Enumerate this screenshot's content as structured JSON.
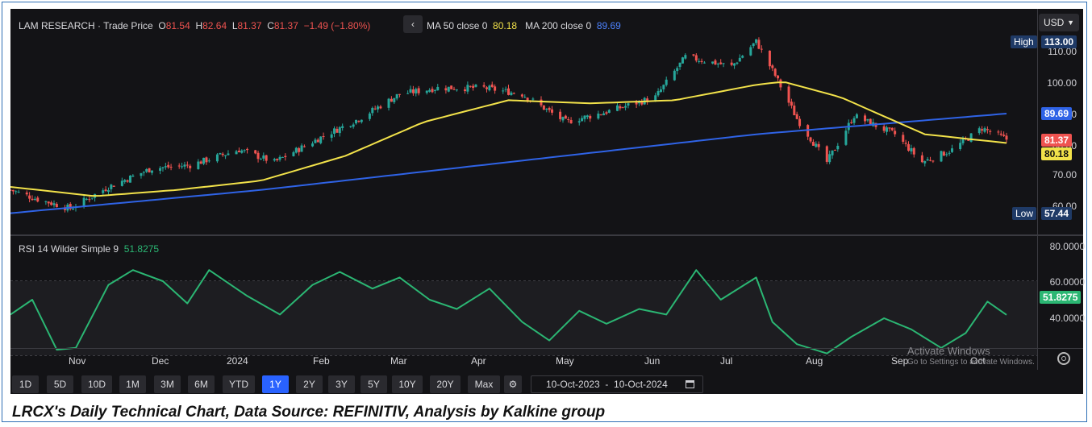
{
  "header": {
    "symbol": "LAM RESEARCH · Trade Price",
    "o_label": "O",
    "o_value": "81.54",
    "h_label": "H",
    "h_value": "82.64",
    "l_label": "L",
    "l_value": "81.37",
    "c_label": "C",
    "c_value": "81.37",
    "change": "−1.49 (−1.80%)",
    "collapse_icon": "chevron-left-icon",
    "ma50_label": "MA 50 close 0",
    "ma50_value": "80.18",
    "ma200_label": "MA 200 close 0",
    "ma200_value": "89.69",
    "currency": "USD"
  },
  "price_axis": {
    "ticks": [
      "110.00",
      "100.00",
      "90.00",
      "80.00",
      "70.00",
      "60.00"
    ],
    "high_label": "High",
    "high_value": "113.00",
    "low_label": "Low",
    "low_value": "57.44",
    "tag_ma200": "89.69",
    "tag_close": "81.37",
    "tag_ma50": "80.18"
  },
  "rsi": {
    "label": "RSI 14 Wilder Simple 9",
    "value": "51.8275",
    "ticks": [
      "80.0000",
      "60.0000",
      "40.0000"
    ],
    "tag": "51.8275"
  },
  "time_axis": {
    "labels": [
      "Nov",
      "Dec",
      "2024",
      "Feb",
      "Mar",
      "Apr",
      "May",
      "Jun",
      "Jul",
      "Aug",
      "Sep",
      "Oct"
    ]
  },
  "watermark": {
    "line1": "Activate Windows",
    "line2": "Go to Settings to activate Windows."
  },
  "toolbar": {
    "ranges": [
      "1D",
      "5D",
      "10D",
      "1M",
      "3M",
      "6M",
      "YTD",
      "1Y",
      "2Y",
      "3Y",
      "5Y",
      "10Y",
      "20Y",
      "Max"
    ],
    "active_range": "1Y",
    "settings_icon": "gear-icon",
    "date_from": "10-Oct-2023",
    "date_sep": "-",
    "date_to": "10-Oct-2024",
    "calendar_icon": "calendar-icon",
    "chart_settings_icon": "settings-icon"
  },
  "caption": "LRCX's Daily Technical Chart, Data Source: REFINITIV, Analysis by Kalkine group",
  "colors": {
    "background": "#131316",
    "up": "#26a69a",
    "down": "#ef5350",
    "ma50": "#f2e24a",
    "ma200": "#2f63e6",
    "rsi": "#2bb673",
    "active": "#2962ff"
  },
  "chart_data": [
    {
      "type": "candlestick",
      "title": "LAM RESEARCH · Trade Price",
      "x_range": [
        "10-Oct-2023",
        "10-Oct-2024"
      ],
      "ylim": [
        57.44,
        113.0
      ],
      "y_ticks": [
        60,
        70,
        80,
        90,
        100,
        110
      ],
      "series": [
        {
          "name": "Trade Price",
          "x": [
            "2023-10-10",
            "2023-10-20",
            "2023-11-01",
            "2023-11-15",
            "2023-12-01",
            "2023-12-15",
            "2024-01-02",
            "2024-01-15",
            "2024-02-01",
            "2024-02-15",
            "2024-03-01",
            "2024-03-15",
            "2024-04-01",
            "2024-04-15",
            "2024-05-01",
            "2024-05-15",
            "2024-06-03",
            "2024-06-14",
            "2024-07-01",
            "2024-07-10",
            "2024-07-17",
            "2024-07-25",
            "2024-08-05",
            "2024-08-15",
            "2024-08-30",
            "2024-09-09",
            "2024-09-20",
            "2024-10-01",
            "2024-10-10"
          ],
          "values": [
            65,
            62,
            59,
            66,
            72,
            73,
            78,
            74,
            82,
            88,
            96,
            98,
            98,
            96,
            87,
            90,
            95,
            108,
            105,
            113,
            102,
            88,
            74,
            89,
            83,
            74,
            78,
            85,
            81.37
          ]
        },
        {
          "name": "MA 50 close 0",
          "x": [
            "2023-10-10",
            "2023-11-10",
            "2023-12-10",
            "2024-01-10",
            "2024-02-10",
            "2024-03-10",
            "2024-04-10",
            "2024-05-10",
            "2024-06-10",
            "2024-07-10",
            "2024-07-20",
            "2024-08-10",
            "2024-09-10",
            "2024-10-10"
          ],
          "values": [
            66,
            63,
            65,
            68,
            76,
            87,
            94,
            93,
            94,
            99,
            100,
            95,
            83,
            80.18
          ]
        },
        {
          "name": "MA 200 close 0",
          "x": [
            "2023-10-10",
            "2024-01-10",
            "2024-04-10",
            "2024-07-10",
            "2024-10-10"
          ],
          "values": [
            57.5,
            65,
            74,
            83,
            89.69
          ]
        }
      ]
    },
    {
      "type": "line",
      "title": "RSI 14 Wilder Simple 9",
      "ylim": [
        26,
        88
      ],
      "y_ticks": [
        40,
        60,
        80
      ],
      "reference_lines": [
        30,
        70
      ],
      "series": [
        {
          "name": "RSI 14",
          "x": [
            "2023-10-10",
            "2023-10-18",
            "2023-10-27",
            "2023-11-03",
            "2023-11-15",
            "2023-11-24",
            "2023-12-05",
            "2023-12-14",
            "2023-12-22",
            "2024-01-05",
            "2024-01-17",
            "2024-01-29",
            "2024-02-08",
            "2024-02-20",
            "2024-03-01",
            "2024-03-12",
            "2024-03-22",
            "2024-04-03",
            "2024-04-15",
            "2024-04-25",
            "2024-05-06",
            "2024-05-16",
            "2024-05-28",
            "2024-06-07",
            "2024-06-18",
            "2024-06-27",
            "2024-07-10",
            "2024-07-16",
            "2024-07-25",
            "2024-08-05",
            "2024-08-14",
            "2024-08-26",
            "2024-09-05",
            "2024-09-16",
            "2024-09-25",
            "2024-10-03",
            "2024-10-10"
          ],
          "values": [
            52,
            60,
            33,
            34,
            68,
            76,
            70,
            58,
            76,
            62,
            52,
            68,
            75,
            66,
            72,
            60,
            55,
            66,
            48,
            38,
            54,
            47,
            55,
            52,
            76,
            60,
            72,
            48,
            36,
            31,
            40,
            50,
            44,
            34,
            42,
            59,
            51.83
          ]
        }
      ]
    }
  ]
}
